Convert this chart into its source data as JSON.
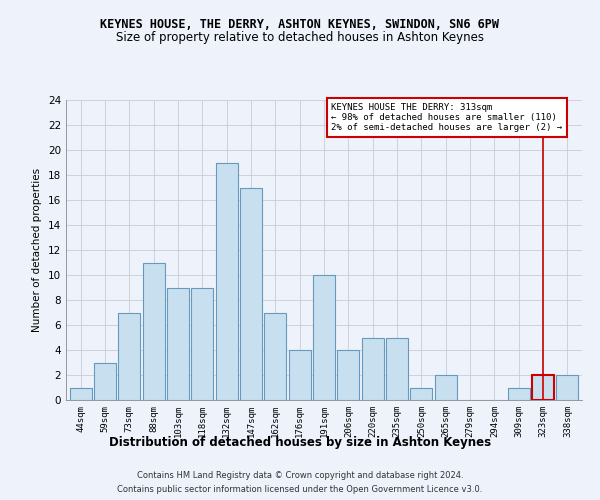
{
  "title": "KEYNES HOUSE, THE DERRY, ASHTON KEYNES, SWINDON, SN6 6PW",
  "subtitle": "Size of property relative to detached houses in Ashton Keynes",
  "xlabel": "Distribution of detached houses by size in Ashton Keynes",
  "ylabel": "Number of detached properties",
  "categories": [
    "44sqm",
    "59sqm",
    "73sqm",
    "88sqm",
    "103sqm",
    "118sqm",
    "132sqm",
    "147sqm",
    "162sqm",
    "176sqm",
    "191sqm",
    "206sqm",
    "220sqm",
    "235sqm",
    "250sqm",
    "265sqm",
    "279sqm",
    "294sqm",
    "309sqm",
    "323sqm",
    "338sqm"
  ],
  "values": [
    1,
    3,
    7,
    11,
    9,
    9,
    19,
    17,
    7,
    4,
    10,
    4,
    5,
    5,
    1,
    2,
    0,
    0,
    1,
    2,
    2
  ],
  "bar_color": "#c8dff0",
  "bar_edge_color": "#6699bb",
  "highlight_bar_index": 19,
  "highlight_edge_color": "#cc0000",
  "annotation_text": "KEYNES HOUSE THE DERRY: 313sqm\n← 98% of detached houses are smaller (110)\n2% of semi-detached houses are larger (2) →",
  "annotation_box_color": "#ffffff",
  "annotation_box_edge_color": "#cc0000",
  "ylim": [
    0,
    24
  ],
  "yticks": [
    0,
    2,
    4,
    6,
    8,
    10,
    12,
    14,
    16,
    18,
    20,
    22,
    24
  ],
  "background_color": "#eef2fb",
  "grid_color": "#c8ccd8",
  "footer_line1": "Contains HM Land Registry data © Crown copyright and database right 2024.",
  "footer_line2": "Contains public sector information licensed under the Open Government Licence v3.0.",
  "title_fontsize": 8.5,
  "subtitle_fontsize": 8.5,
  "xlabel_fontsize": 8.5,
  "ylabel_fontsize": 7.5,
  "red_line_index": 19
}
